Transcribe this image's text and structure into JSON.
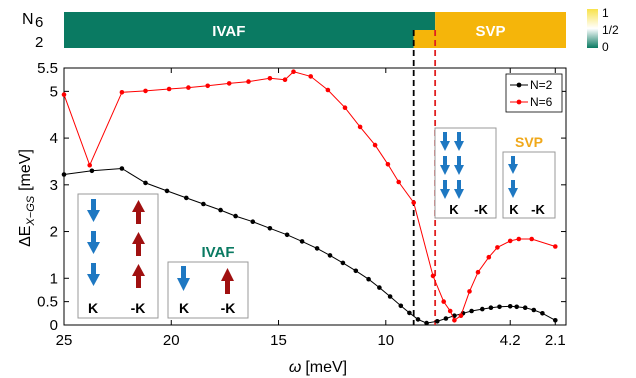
{
  "chart_data": {
    "type": "line",
    "xlabel_var": "ω",
    "xlabel_unit": "[meV]",
    "ylabel_main": "ΔE",
    "ylabel_sub": "X−GS",
    "ylabel_unit": "[meV]",
    "x_ticks": [
      "25",
      "20",
      "15",
      "10",
      "4.2",
      "2.1"
    ],
    "x_tick_values": [
      25,
      20,
      15,
      10,
      4.2,
      2.1
    ],
    "x_range": [
      25,
      1.6
    ],
    "x_reversed": true,
    "y_ticks": [
      "0",
      "0.5",
      "1",
      "2",
      "3",
      "4",
      "5",
      "5.5"
    ],
    "y_tick_values": [
      0,
      0.5,
      1,
      2,
      3,
      4,
      5,
      5.5
    ],
    "y_range": [
      0,
      5.5
    ],
    "grid": false,
    "legend_position": "top-right",
    "legend": [
      "N=2",
      "N=6"
    ],
    "series": [
      {
        "name": "N=2",
        "color": "#000000",
        "points": [
          [
            25,
            3.22
          ],
          [
            23.7,
            3.3
          ],
          [
            22.3,
            3.35
          ],
          [
            21.2,
            3.04
          ],
          [
            20.2,
            2.87
          ],
          [
            19.3,
            2.72
          ],
          [
            18.5,
            2.59
          ],
          [
            17.7,
            2.46
          ],
          [
            17,
            2.33
          ],
          [
            16.2,
            2.21
          ],
          [
            15.4,
            2.07
          ],
          [
            14.6,
            1.93
          ],
          [
            13.9,
            1.79
          ],
          [
            13.2,
            1.64
          ],
          [
            12.6,
            1.49
          ],
          [
            12,
            1.33
          ],
          [
            11.4,
            1.16
          ],
          [
            10.8,
            0.98
          ],
          [
            10.3,
            0.8
          ],
          [
            9.8,
            0.61
          ],
          [
            9.3,
            0.41
          ],
          [
            8.9,
            0.26
          ],
          [
            8.5,
            0.12
          ],
          [
            8.1,
            0.04
          ],
          [
            7.6,
            0.08
          ],
          [
            7.2,
            0.14
          ],
          [
            6.8,
            0.2
          ],
          [
            6.4,
            0.25
          ],
          [
            6,
            0.3
          ],
          [
            5.5,
            0.34
          ],
          [
            5.1,
            0.37
          ],
          [
            4.7,
            0.39
          ],
          [
            4.2,
            0.4
          ],
          [
            3.9,
            0.39
          ],
          [
            3.5,
            0.37
          ],
          [
            3.1,
            0.32
          ],
          [
            2.7,
            0.25
          ],
          [
            2.1,
            0.1
          ]
        ]
      },
      {
        "name": "N=6",
        "color": "#ff0000",
        "points": [
          [
            25,
            4.93
          ],
          [
            23.8,
            3.42
          ],
          [
            22.3,
            4.98
          ],
          [
            21.2,
            5.01
          ],
          [
            20.1,
            5.05
          ],
          [
            19.2,
            5.08
          ],
          [
            18.3,
            5.12
          ],
          [
            17.3,
            5.17
          ],
          [
            16.4,
            5.21
          ],
          [
            15.4,
            5.28
          ],
          [
            14.7,
            5.25
          ],
          [
            14.3,
            5.42
          ],
          [
            13.5,
            5.32
          ],
          [
            12.7,
            5.03
          ],
          [
            11.9,
            4.65
          ],
          [
            11.2,
            4.24
          ],
          [
            10.5,
            3.85
          ],
          [
            9.9,
            3.44
          ],
          [
            9.4,
            3.06
          ],
          [
            8.7,
            2.62
          ],
          [
            7.8,
            1.05
          ],
          [
            7.3,
            0.5
          ],
          [
            7,
            0.3
          ],
          [
            6.8,
            0.1
          ],
          [
            6.5,
            0.2
          ],
          [
            6.1,
            0.72
          ],
          [
            5.7,
            1.13
          ],
          [
            5.2,
            1.45
          ],
          [
            4.8,
            1.66
          ],
          [
            4.2,
            1.8
          ],
          [
            3.8,
            1.84
          ],
          [
            3.2,
            1.84
          ],
          [
            2.1,
            1.68
          ]
        ]
      }
    ],
    "vlines": [
      {
        "x": 8.7,
        "color": "#000000"
      },
      {
        "x": 7.7,
        "color": "#e02020"
      }
    ],
    "phase_bar": {
      "label": "N",
      "rows": [
        "6",
        "2"
      ],
      "ivaf_label": "IVAF",
      "svp_label": "SVP",
      "ivaf_color": "#0a7a62",
      "svp_color": "#f5b50a",
      "n6_boundary": 7.7,
      "n2_boundary": 8.7,
      "colorbar_ticks": [
        "1",
        "1/2",
        "0"
      ]
    },
    "annotations": {
      "ivaf_title": "IVAF",
      "svp_title": "SVP",
      "k_label": "K",
      "mk_label": "-K",
      "ivaf_color": "#0a7a62",
      "svp_color": "#f0a81a",
      "down_arrow_color": "#1e78c2",
      "up_arrow_color": "#a01010"
    }
  }
}
